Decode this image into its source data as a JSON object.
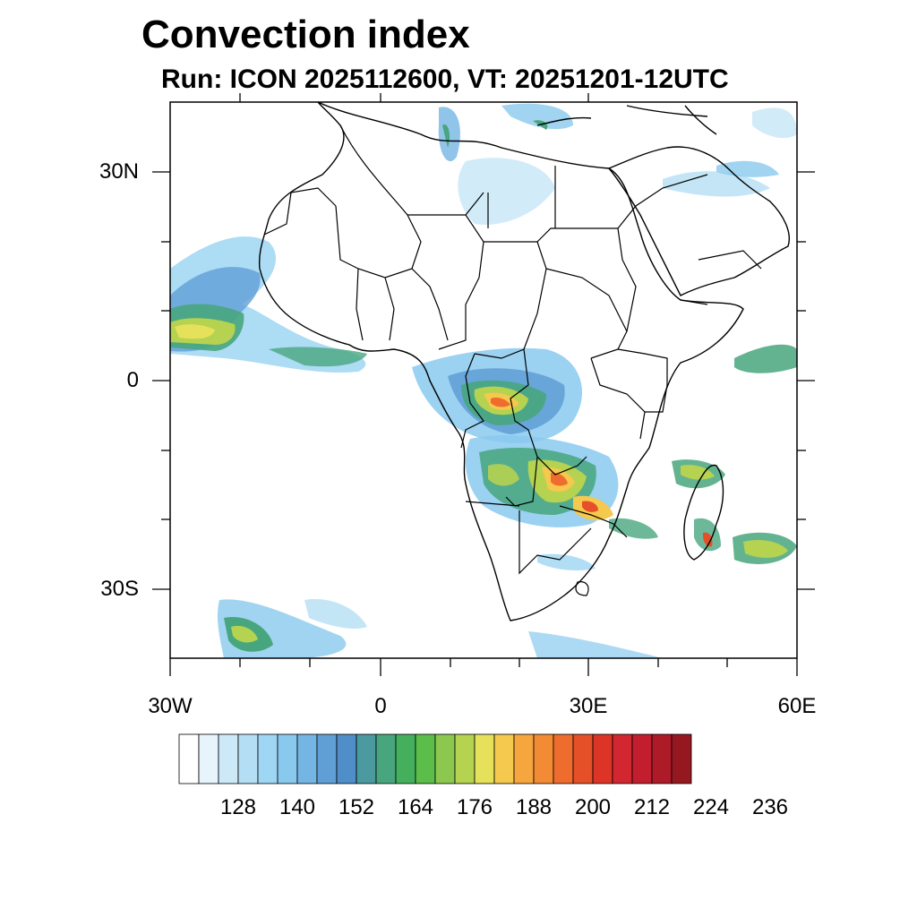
{
  "title": "Convection index",
  "subtitle": "Run: ICON 2025112600,  VT: 20251201-12UTC",
  "map": {
    "region": "Africa",
    "lon_range": [
      -30,
      60
    ],
    "lat_range": [
      -40,
      40
    ],
    "y_axis_labels": [
      "30N",
      "0",
      "30S"
    ],
    "x_axis_labels": [
      "30W",
      "0",
      "30E",
      "60E"
    ]
  },
  "colorbar": {
    "labels": [
      "128",
      "140",
      "152",
      "164",
      "176",
      "188",
      "200",
      "212",
      "224",
      "236"
    ],
    "colors": [
      "#ffffff",
      "#e8f4fc",
      "#cde9f8",
      "#b4def4",
      "#9fd6f3",
      "#89c9ee",
      "#74b5e4",
      "#5f9fd6",
      "#4f8ec8",
      "#4a9aa0",
      "#48a67e",
      "#44b05e",
      "#5bbd4a",
      "#8cc850",
      "#b5d250",
      "#e6e15a",
      "#f5c84e",
      "#f6a63e",
      "#f38a34",
      "#ee6c2e",
      "#e65028",
      "#dd3428",
      "#d22630",
      "#c21e2e",
      "#ad1a28",
      "#951820"
    ]
  }
}
